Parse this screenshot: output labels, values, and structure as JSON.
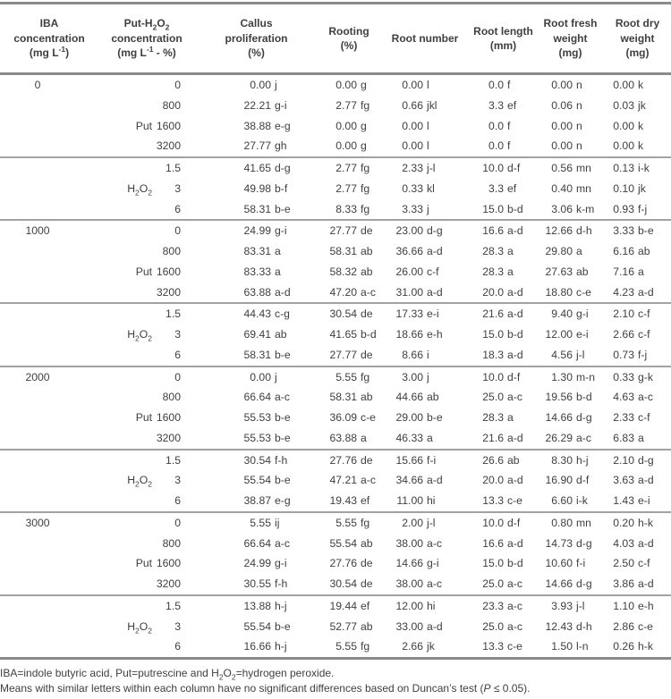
{
  "colors": {
    "background": "#ffffff",
    "text": "#3f3f3f",
    "rule_dark": "#8a8a8a",
    "rule_light": "#a2a2a2"
  },
  "table": {
    "headers": [
      {
        "id": "iba",
        "lines": [
          "IBA",
          "concentration",
          "(mg L[-1])"
        ]
      },
      {
        "id": "put-h2o2",
        "lines": [
          "Put-H_2O_2",
          "concentration",
          "(mg L[-1] - %)"
        ]
      },
      {
        "id": "callus",
        "lines": [
          "Callus",
          "proliferation",
          "(%)"
        ]
      },
      {
        "id": "rooting",
        "lines": [
          "Rooting",
          "(%)"
        ]
      },
      {
        "id": "root-number",
        "lines": [
          "Root number"
        ]
      },
      {
        "id": "root-length",
        "lines": [
          "Root length",
          "(mm)"
        ]
      },
      {
        "id": "root-fresh-weight",
        "lines": [
          "Root fresh",
          "weight",
          "(mg)"
        ]
      },
      {
        "id": "root-dry-weight",
        "lines": [
          "Root dry",
          "weight",
          "(mg)"
        ]
      }
    ],
    "blocks": [
      {
        "iba": "0",
        "subgroups": [
          {
            "label": "Put",
            "label_row": 2,
            "rows": [
              {
                "dose": "0",
                "cells": [
                  "0.00 j",
                  "0.00 g",
                  "0.00 l",
                  "0.0 f",
                  "0.00 n",
                  "0.00 k"
                ]
              },
              {
                "dose": "800",
                "cells": [
                  "22.21 g-i",
                  "2.77 fg",
                  "0.66 jkl",
                  "3.3 ef",
                  "0.06 n",
                  "0.03 jk"
                ]
              },
              {
                "dose": "1600",
                "cells": [
                  "38.88 e-g",
                  "0.00 g",
                  "0.00 l",
                  "0.0 f",
                  "0.00 n",
                  "0.00 k"
                ]
              },
              {
                "dose": "3200",
                "cells": [
                  "27.77 gh",
                  "0.00 g",
                  "0.00 l",
                  "0.0 f",
                  "0.00 n",
                  "0.00 k"
                ]
              }
            ]
          },
          {
            "label": "H_2O_2",
            "label_row": 1,
            "rows": [
              {
                "dose": "1.5",
                "cells": [
                  "41.65 d-g",
                  "2.77 fg",
                  "2.33 j-l",
                  "10.0 d-f",
                  "0.56 mn",
                  "0.13 i-k"
                ]
              },
              {
                "dose": "3",
                "cells": [
                  "49.98 b-f",
                  "2.77 fg",
                  "0.33 kl",
                  "3.3 ef",
                  "0.40 mn",
                  "0.10 jk"
                ]
              },
              {
                "dose": "6",
                "cells": [
                  "58.31 b-e",
                  "8.33 fg",
                  "3.33 j",
                  "15.0 b-d",
                  "3.06 k-m",
                  "0.93 f-j"
                ]
              }
            ]
          }
        ]
      },
      {
        "iba": "1000",
        "subgroups": [
          {
            "label": "Put",
            "label_row": 2,
            "rows": [
              {
                "dose": "0",
                "cells": [
                  "24.99 g-i",
                  "27.77 de",
                  "23.00 d-g",
                  "16.6 a-d",
                  "12.66 d-h",
                  "3.33 b-e"
                ]
              },
              {
                "dose": "800",
                "cells": [
                  "83.31 a",
                  "58.31 ab",
                  "36.66 a-d",
                  "28.3 a",
                  "29.80 a",
                  "6.16 ab"
                ]
              },
              {
                "dose": "1600",
                "cells": [
                  "83.33 a",
                  "58.32 ab",
                  "26.00 c-f",
                  "28.3 a",
                  "27.63 ab",
                  "7.16 a"
                ]
              },
              {
                "dose": "3200",
                "cells": [
                  "63.88 a-d",
                  "47.20 a-c",
                  "31.00 a-d",
                  "20.0 a-d",
                  "18.80 c-e",
                  "4.23 a-d"
                ]
              }
            ]
          },
          {
            "label": "H_2O_2",
            "label_row": 1,
            "rows": [
              {
                "dose": "1.5",
                "cells": [
                  "44.43 c-g",
                  "30.54 de",
                  "17.33 e-i",
                  "21.6 a-d",
                  "9.40 g-i",
                  "2.10 c-f"
                ]
              },
              {
                "dose": "3",
                "cells": [
                  "69.41 ab",
                  "41.65 b-d",
                  "18.66 e-h",
                  "15.0 b-d",
                  "12.00 e-i",
                  "2.66 c-f"
                ]
              },
              {
                "dose": "6",
                "cells": [
                  "58.31 b-e",
                  "27.77 de",
                  "8.66 i",
                  "18.3 a-d",
                  "4.56 j-l",
                  "0.73 f-j"
                ]
              }
            ]
          }
        ]
      },
      {
        "iba": "2000",
        "subgroups": [
          {
            "label": "Put",
            "label_row": 2,
            "rows": [
              {
                "dose": "0",
                "cells": [
                  "0.00 j",
                  "5.55 fg",
                  "3.00 j",
                  "10.0 d-f",
                  "1.30 m-n",
                  "0.33 g-k"
                ]
              },
              {
                "dose": "800",
                "cells": [
                  "66.64 a-c",
                  "58.31 ab",
                  "44.66 ab",
                  "25.0 a-c",
                  "19.56 b-d",
                  "4.63 a-c"
                ]
              },
              {
                "dose": "1600",
                "cells": [
                  "55.53 b-e",
                  "36.09 c-e",
                  "29.00 b-e",
                  "28.3 a",
                  "14.66 d-g",
                  "2.33 c-f"
                ]
              },
              {
                "dose": "3200",
                "cells": [
                  "55.53 b-e",
                  "63.88 a",
                  "46.33 a",
                  "21.6 a-d",
                  "26.29 a-c",
                  "6.83 a"
                ]
              }
            ]
          },
          {
            "label": "H_2O_2",
            "label_row": 1,
            "rows": [
              {
                "dose": "1.5",
                "cells": [
                  "30.54 f-h",
                  "27.76 de",
                  "15.66 f-i",
                  "26.6 ab",
                  "8.30 h-j",
                  "2.10 d-g"
                ]
              },
              {
                "dose": "3",
                "cells": [
                  "55.54 b-e",
                  "47.21 a-c",
                  "34.66 a-d",
                  "20.0 a-d",
                  "16.90 d-f",
                  "3.63 a-d"
                ]
              },
              {
                "dose": "6",
                "cells": [
                  "38.87 e-g",
                  "19.43 ef",
                  "11.00 hi",
                  "13.3 c-e",
                  "6.60 i-k",
                  "1.43 e-i"
                ]
              }
            ]
          }
        ]
      },
      {
        "iba": "3000",
        "subgroups": [
          {
            "label": "Put",
            "label_row": 2,
            "rows": [
              {
                "dose": "0",
                "cells": [
                  "5.55 ij",
                  "5.55 fg",
                  "2.00 j-l",
                  "10.0 d-f",
                  "0.80 mn",
                  "0.20 h-k"
                ]
              },
              {
                "dose": "800",
                "cells": [
                  "66.64 a-c",
                  "55.54 ab",
                  "38.00 a-c",
                  "16.6 a-d",
                  "14.73 d-g",
                  "4.03 a-d"
                ]
              },
              {
                "dose": "1600",
                "cells": [
                  "24.99 g-i",
                  "27.76 de",
                  "14.66 g-i",
                  "15.0 b-d",
                  "10.60 f-i",
                  "2.50 c-f"
                ]
              },
              {
                "dose": "3200",
                "cells": [
                  "30.55 f-h",
                  "30.54 de",
                  "38.00 a-c",
                  "25.0 a-c",
                  "14.66 d-g",
                  "3.86 a-d"
                ]
              }
            ]
          },
          {
            "label": "H_2O_2",
            "label_row": 1,
            "rows": [
              {
                "dose": "1.5",
                "cells": [
                  "13.88 h-j",
                  "19.44 ef",
                  "12.00 hi",
                  "23.3 a-c",
                  "3.93 j-l",
                  "1.10 e-h"
                ]
              },
              {
                "dose": "3",
                "cells": [
                  "55.54 b-e",
                  "52.77 ab",
                  "33.00 a-d",
                  "25.0 a-c",
                  "12.43 d-h",
                  "2.86 c-e"
                ]
              },
              {
                "dose": "6",
                "cells": [
                  "16.66 h-j",
                  "5.55 fg",
                  "2.66 jk",
                  "13.3 c-e",
                  "1.50 l-n",
                  "0.26 h-k"
                ]
              }
            ]
          }
        ]
      }
    ]
  },
  "footnotes": [
    "IBA=indole butyric acid, Put=putrescine and H_2O_2=hydrogen peroxide.",
    "Means with similar letters within each column have no significant differences based on Duncan’s test (*P* ≤ 0.05)."
  ]
}
